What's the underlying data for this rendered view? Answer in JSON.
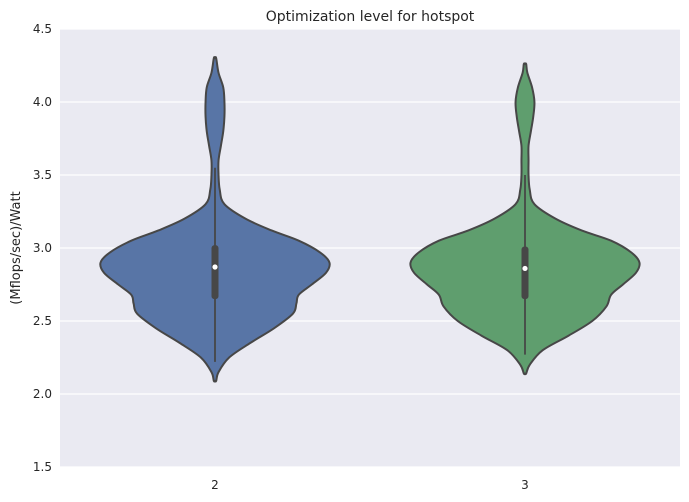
{
  "chart_data": {
    "type": "violin",
    "title": "Optimization level for hotspot",
    "xlabel": "",
    "ylabel": "(Mflops/sec)/Watt",
    "ylim": [
      1.5,
      4.5
    ],
    "yticks": [
      "1.5",
      "2.0",
      "2.5",
      "3.0",
      "3.5",
      "4.0",
      "4.5"
    ],
    "grid": true,
    "categories": [
      "2",
      "3"
    ],
    "series": [
      {
        "category": "2",
        "color": "#5875a6",
        "min": 2.09,
        "max": 4.3,
        "q1": 2.65,
        "median": 2.87,
        "q3": 3.02,
        "whisker_low": 2.22,
        "whisker_high": 3.55,
        "density": [
          [
            2.09,
            0.01
          ],
          [
            2.15,
            0.03
          ],
          [
            2.25,
            0.12
          ],
          [
            2.35,
            0.3
          ],
          [
            2.45,
            0.5
          ],
          [
            2.55,
            0.66
          ],
          [
            2.62,
            0.69
          ],
          [
            2.68,
            0.71
          ],
          [
            2.75,
            0.82
          ],
          [
            2.83,
            0.94
          ],
          [
            2.9,
            0.97
          ],
          [
            2.97,
            0.89
          ],
          [
            3.05,
            0.71
          ],
          [
            3.12,
            0.48
          ],
          [
            3.2,
            0.26
          ],
          [
            3.3,
            0.08
          ],
          [
            3.4,
            0.04
          ],
          [
            3.5,
            0.03
          ],
          [
            3.6,
            0.03
          ],
          [
            3.7,
            0.05
          ],
          [
            3.8,
            0.07
          ],
          [
            3.9,
            0.08
          ],
          [
            4.0,
            0.08
          ],
          [
            4.1,
            0.07
          ],
          [
            4.2,
            0.03
          ],
          [
            4.3,
            0.01
          ]
        ]
      },
      {
        "category": "3",
        "color": "#5f9e6e",
        "min": 2.14,
        "max": 4.26,
        "q1": 2.65,
        "median": 2.86,
        "q3": 3.01,
        "whisker_low": 2.27,
        "whisker_high": 3.5,
        "density": [
          [
            2.14,
            0.01
          ],
          [
            2.2,
            0.04
          ],
          [
            2.3,
            0.15
          ],
          [
            2.4,
            0.37
          ],
          [
            2.5,
            0.57
          ],
          [
            2.6,
            0.69
          ],
          [
            2.68,
            0.73
          ],
          [
            2.75,
            0.83
          ],
          [
            2.83,
            0.94
          ],
          [
            2.9,
            0.97
          ],
          [
            2.97,
            0.9
          ],
          [
            3.05,
            0.73
          ],
          [
            3.12,
            0.48
          ],
          [
            3.2,
            0.26
          ],
          [
            3.3,
            0.08
          ],
          [
            3.4,
            0.04
          ],
          [
            3.5,
            0.03
          ],
          [
            3.6,
            0.03
          ],
          [
            3.7,
            0.03
          ],
          [
            3.8,
            0.05
          ],
          [
            3.9,
            0.07
          ],
          [
            4.0,
            0.08
          ],
          [
            4.1,
            0.06
          ],
          [
            4.2,
            0.02
          ],
          [
            4.26,
            0.01
          ]
        ]
      }
    ]
  }
}
